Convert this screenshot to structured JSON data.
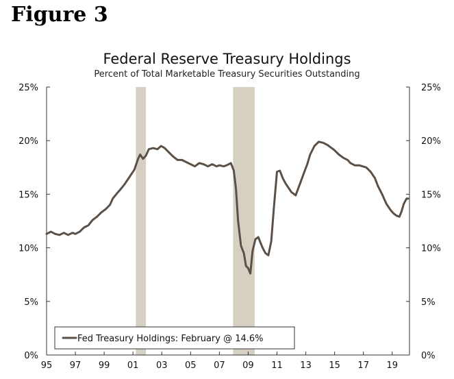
{
  "figure_label": "Figure 3",
  "chart_data": {
    "type": "line",
    "title": "Federal Reserve Treasury Holdings",
    "subtitle": "Percent of Total Marketable Treasury Securities Outstanding",
    "xlabel": "",
    "ylabel": "",
    "ylim": [
      0,
      25
    ],
    "xlim": [
      1995,
      2020.2
    ],
    "y_ticks": [
      0,
      5,
      10,
      15,
      20,
      25
    ],
    "y_tick_labels": [
      "0%",
      "5%",
      "10%",
      "15%",
      "20%",
      "25%"
    ],
    "x_ticks": [
      1995,
      1997,
      1999,
      2001,
      2003,
      2005,
      2007,
      2009,
      2011,
      2013,
      2015,
      2017,
      2019
    ],
    "x_tick_labels": [
      "95",
      "97",
      "99",
      "01",
      "03",
      "05",
      "07",
      "09",
      "11",
      "13",
      "15",
      "17",
      "19"
    ],
    "recessions": [
      {
        "start": 2001.2,
        "end": 2001.9
      },
      {
        "start": 2007.95,
        "end": 2009.45
      }
    ],
    "colors": {
      "line": "#5a5048",
      "recession": "#d6d0c2",
      "axis": "#333333"
    },
    "legend": "Fed Treasury Holdings: February @ 14.6%",
    "legend_position": "bottom-left",
    "series": [
      {
        "name": "Fed Treasury Holdings",
        "x": [
          1995.0,
          1995.3,
          1995.6,
          1995.9,
          1996.2,
          1996.5,
          1996.8,
          1997.0,
          1997.3,
          1997.6,
          1997.9,
          1998.2,
          1998.5,
          1998.8,
          1999.1,
          1999.4,
          1999.6,
          1999.9,
          2000.1,
          2000.4,
          2000.6,
          2000.9,
          2001.1,
          2001.35,
          2001.5,
          2001.7,
          2001.9,
          2002.1,
          2002.4,
          2002.7,
          2002.95,
          2003.2,
          2003.5,
          2003.8,
          2004.1,
          2004.4,
          2004.7,
          2005.0,
          2005.3,
          2005.6,
          2005.9,
          2006.2,
          2006.5,
          2006.8,
          2007.0,
          2007.3,
          2007.5,
          2007.8,
          2008.0,
          2008.15,
          2008.3,
          2008.5,
          2008.7,
          2008.85,
          2009.0,
          2009.15,
          2009.3,
          2009.5,
          2009.7,
          2009.85,
          2010.0,
          2010.2,
          2010.4,
          2010.6,
          2010.8,
          2011.0,
          2011.2,
          2011.4,
          2011.6,
          2011.8,
          2012.0,
          2012.3,
          2012.6,
          2012.9,
          2013.1,
          2013.3,
          2013.6,
          2013.9,
          2014.2,
          2014.5,
          2014.8,
          2015.0,
          2015.3,
          2015.6,
          2015.9,
          2016.1,
          2016.4,
          2016.7,
          2016.95,
          2017.2,
          2017.5,
          2017.8,
          2018.0,
          2018.3,
          2018.6,
          2018.9,
          2019.1,
          2019.3,
          2019.5,
          2019.65,
          2019.8,
          2020.0,
          2020.1
        ],
        "values": [
          11.3,
          11.5,
          11.3,
          11.2,
          11.4,
          11.2,
          11.4,
          11.3,
          11.5,
          11.9,
          12.1,
          12.6,
          12.9,
          13.3,
          13.6,
          14.0,
          14.6,
          15.1,
          15.4,
          15.9,
          16.3,
          16.9,
          17.3,
          18.3,
          18.7,
          18.3,
          18.6,
          19.2,
          19.3,
          19.2,
          19.5,
          19.3,
          18.9,
          18.5,
          18.2,
          18.2,
          18.0,
          17.8,
          17.6,
          17.9,
          17.8,
          17.6,
          17.8,
          17.6,
          17.7,
          17.6,
          17.7,
          17.9,
          17.2,
          15.5,
          12.5,
          10.2,
          9.5,
          8.3,
          8.1,
          7.6,
          9.7,
          10.8,
          11.0,
          10.5,
          10.0,
          9.5,
          9.3,
          10.6,
          14.0,
          17.1,
          17.2,
          16.5,
          16.0,
          15.6,
          15.2,
          14.9,
          16.0,
          17.1,
          17.8,
          18.7,
          19.5,
          19.9,
          19.8,
          19.6,
          19.3,
          19.1,
          18.7,
          18.4,
          18.2,
          17.9,
          17.7,
          17.7,
          17.6,
          17.5,
          17.1,
          16.5,
          15.8,
          15.0,
          14.1,
          13.5,
          13.2,
          13.0,
          12.9,
          13.4,
          14.1,
          14.6,
          14.6
        ]
      }
    ]
  }
}
